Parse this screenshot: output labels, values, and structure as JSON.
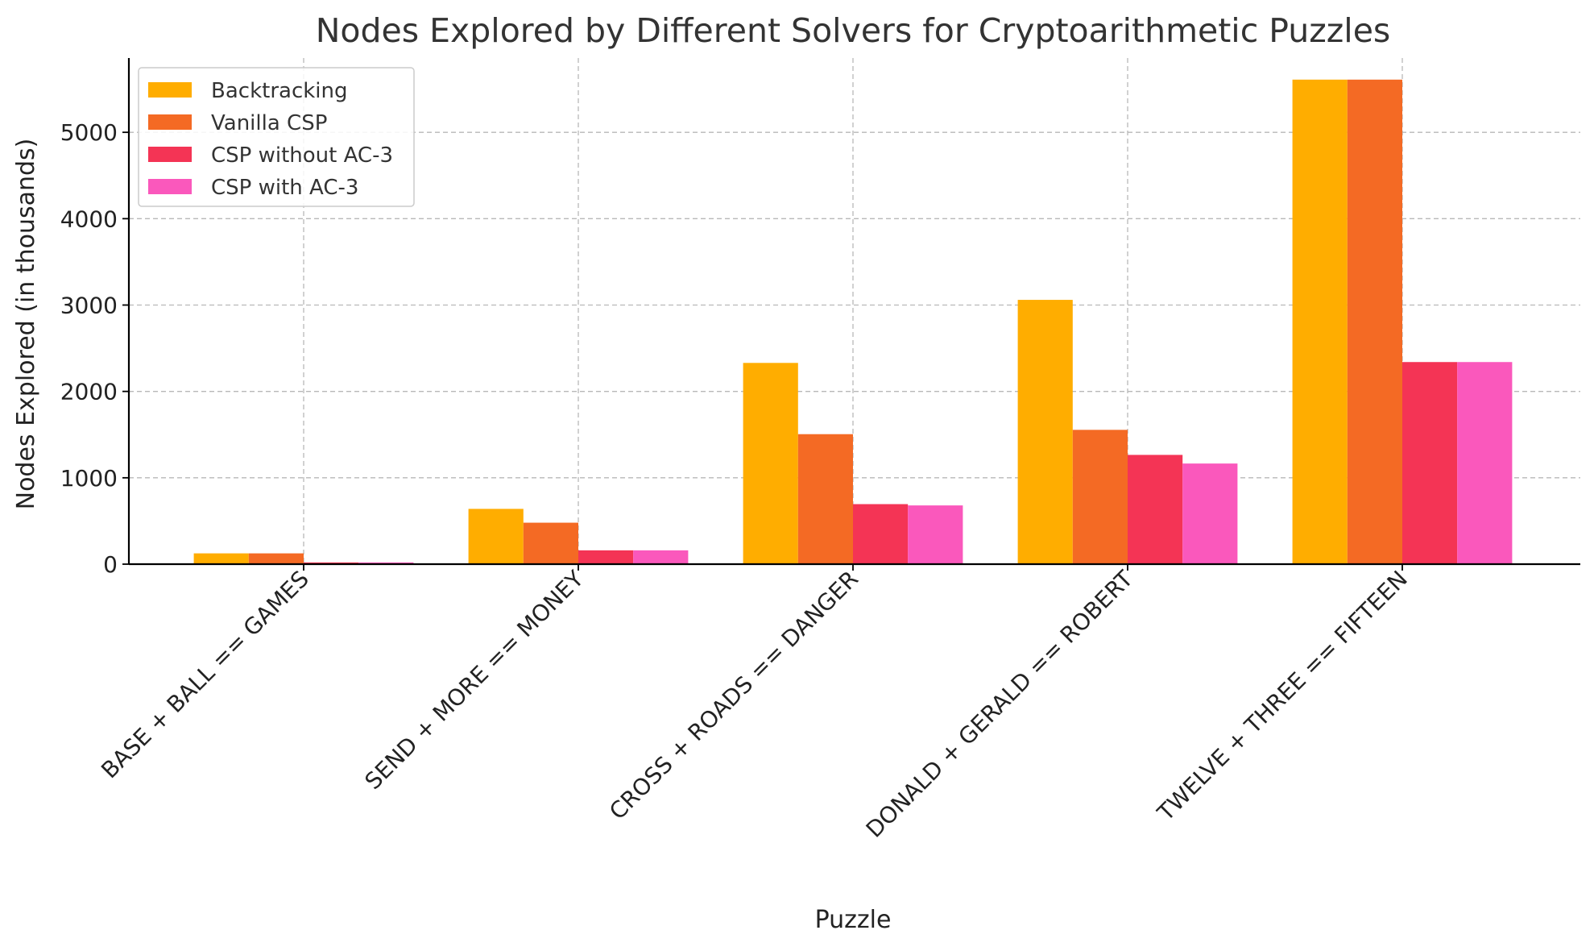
{
  "chart_data": {
    "type": "bar",
    "title": "Nodes Explored by Different Solvers for Cryptoarithmetic Puzzles",
    "xlabel": "Puzzle",
    "ylabel": "Nodes Explored (in thousands)",
    "categories": [
      "BASE + BALL == GAMES",
      "SEND + MORE == MONEY",
      "CROSS + ROADS == DANGER",
      "DONALD + GERALD == ROBERT",
      "TWELVE + THREE == FIFTEEN"
    ],
    "series": [
      {
        "name": "Backtracking",
        "color": "#FFAD00",
        "values": [
          125,
          640,
          2330,
          3060,
          5610
        ]
      },
      {
        "name": "Vanilla CSP",
        "color": "#F46A24",
        "values": [
          125,
          480,
          1505,
          1555,
          5610
        ]
      },
      {
        "name": "CSP without AC-3",
        "color": "#F43455",
        "values": [
          20,
          160,
          695,
          1265,
          2340
        ]
      },
      {
        "name": "CSP with AC-3",
        "color": "#FA58BC",
        "values": [
          20,
          160,
          680,
          1165,
          2340
        ]
      }
    ],
    "ylim": [
      0,
      5860
    ],
    "yticks": [
      0,
      1000,
      2000,
      3000,
      4000,
      5000
    ],
    "grid": true,
    "legend_position": "top-left"
  }
}
